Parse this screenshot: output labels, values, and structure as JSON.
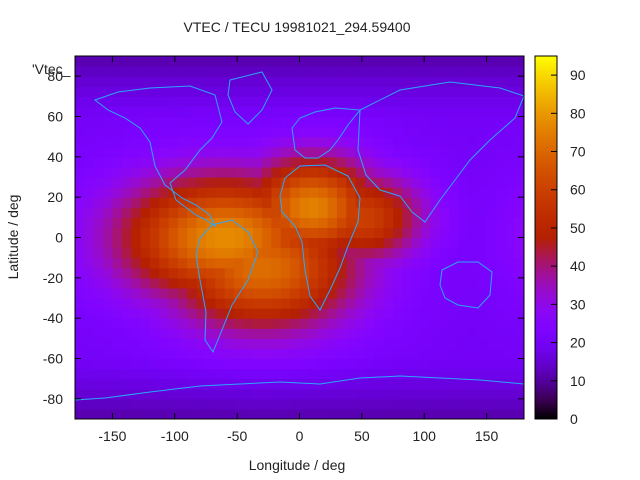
{
  "chart_data": {
    "type": "heatmap",
    "title": "VTEC / TECU 19981021_294.59400",
    "xlabel": "Longitude / deg",
    "ylabel": "Latitude / deg",
    "overlay_label": "'Vtec_",
    "xlim": [
      -180,
      180
    ],
    "ylim": [
      -90,
      90
    ],
    "x_ticks": [
      -150,
      -100,
      -50,
      0,
      50,
      100,
      150
    ],
    "y_ticks": [
      -80,
      -60,
      -40,
      -20,
      0,
      20,
      40,
      60,
      80
    ],
    "colorbar": {
      "range": [
        0,
        95
      ],
      "ticks": [
        0,
        10,
        20,
        30,
        40,
        50,
        60,
        70,
        80,
        90
      ]
    },
    "field_peaks": [
      {
        "lon": -60,
        "lat": 0,
        "value": 78,
        "sx": 60,
        "sy": 22
      },
      {
        "lon": 10,
        "lat": 15,
        "value": 76,
        "sx": 38,
        "sy": 18
      },
      {
        "lon": -30,
        "lat": -15,
        "value": 72,
        "sx": 55,
        "sy": 22
      },
      {
        "lon": 50,
        "lat": 10,
        "value": 60,
        "sx": 35,
        "sy": 16
      }
    ],
    "background_value": 20
  }
}
